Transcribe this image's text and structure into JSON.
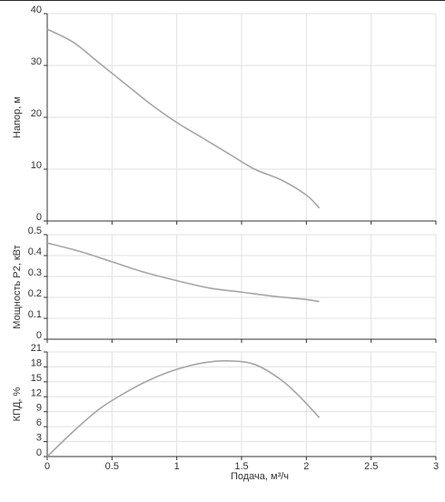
{
  "chart_data": [
    {
      "type": "line",
      "ylabel": "Напор, м",
      "ylim": [
        0,
        40
      ],
      "yticks": [
        "0",
        "10",
        "20",
        "30",
        "40"
      ],
      "xlim": [
        0,
        3
      ],
      "grid": true,
      "series": [
        {
          "x": [
            0,
            0.2,
            0.4,
            0.6,
            0.8,
            1.0,
            1.2,
            1.4,
            1.6,
            1.8,
            2.0,
            2.1
          ],
          "y": [
            37,
            34.5,
            30.5,
            26.5,
            22.5,
            19,
            16,
            13,
            10,
            8,
            5,
            2.5
          ]
        }
      ]
    },
    {
      "type": "line",
      "ylabel": "Мощность P2, кВт",
      "ylim": [
        0,
        0.5
      ],
      "yticks": [
        "0",
        "0.1",
        "0.2",
        "0.3",
        "0.4",
        "0.5"
      ],
      "xlim": [
        0,
        3
      ],
      "grid": true,
      "series": [
        {
          "x": [
            0,
            0.25,
            0.5,
            0.75,
            1.0,
            1.25,
            1.5,
            1.75,
            2.0,
            2.1
          ],
          "y": [
            0.46,
            0.42,
            0.37,
            0.32,
            0.28,
            0.245,
            0.225,
            0.205,
            0.19,
            0.18
          ]
        }
      ]
    },
    {
      "type": "line",
      "ylabel": "КПД, %",
      "xlabel": "Подача, м³/ч",
      "ylim": [
        0,
        21
      ],
      "yticks": [
        "0",
        "3",
        "6",
        "9",
        "12",
        "15",
        "18",
        "21"
      ],
      "xlim": [
        0,
        3
      ],
      "xticks": [
        "0",
        "0.5",
        "1",
        "1.5",
        "2",
        "2.5",
        "3"
      ],
      "grid": true,
      "series": [
        {
          "x": [
            0,
            0.2,
            0.4,
            0.6,
            0.8,
            1.0,
            1.2,
            1.4,
            1.6,
            1.8,
            1.95,
            2.1
          ],
          "y": [
            0,
            5,
            9.5,
            12.8,
            15.5,
            17.5,
            18.8,
            19.2,
            18.5,
            15.5,
            12,
            7.8
          ]
        }
      ]
    }
  ]
}
